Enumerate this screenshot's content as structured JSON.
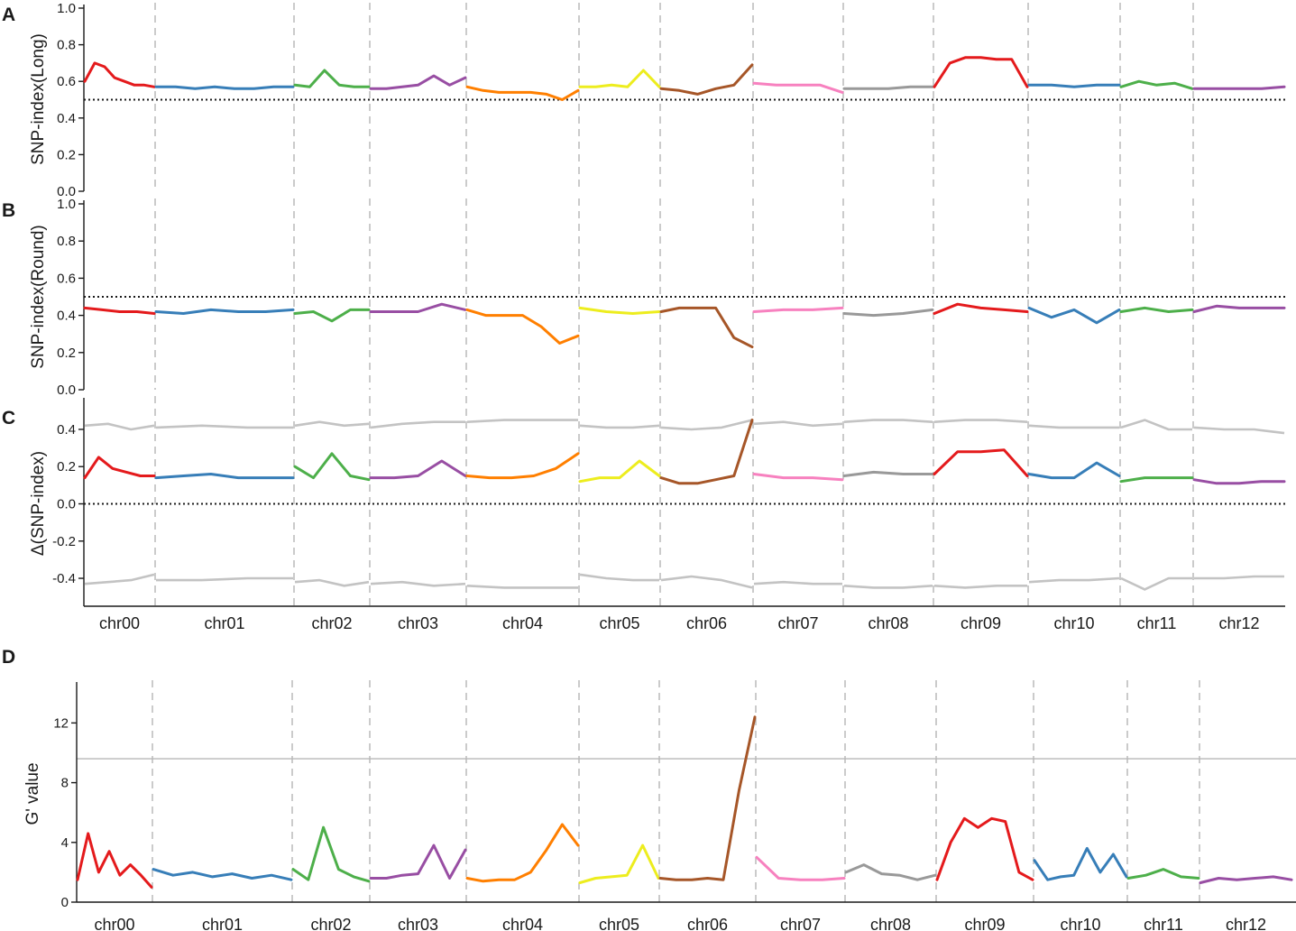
{
  "chart_data": [
    {
      "panel": "A",
      "type": "line",
      "ylabel": "SNP-index(Long)",
      "ylim": [
        0,
        1
      ],
      "yticks": [
        "0.0",
        "0.2",
        "0.4",
        "0.6",
        "0.8",
        "1.0"
      ],
      "threshold": 0.5,
      "chromosomes": [
        "chr00",
        "chr01",
        "chr02",
        "chr03",
        "chr04",
        "chr05",
        "chr06",
        "chr07",
        "chr08",
        "chr09",
        "chr10",
        "chr11",
        "chr12"
      ],
      "colors": [
        "#e41a1c",
        "#377eb8",
        "#4daf4a",
        "#984ea3",
        "#ff7f00",
        "#eded1e",
        "#a65628",
        "#f781bf",
        "#999999",
        "#e41a1c",
        "#377eb8",
        "#4daf4a",
        "#984ea3"
      ],
      "series": [
        {
          "chrom": "chr00",
          "values": [
            0.6,
            0.7,
            0.68,
            0.62,
            0.6,
            0.58,
            0.58,
            0.57
          ]
        },
        {
          "chrom": "chr01",
          "values": [
            0.57,
            0.57,
            0.56,
            0.57,
            0.56,
            0.56,
            0.57,
            0.57
          ]
        },
        {
          "chrom": "chr02",
          "values": [
            0.58,
            0.57,
            0.66,
            0.58,
            0.57,
            0.57
          ]
        },
        {
          "chrom": "chr03",
          "values": [
            0.56,
            0.56,
            0.57,
            0.58,
            0.63,
            0.58,
            0.62
          ]
        },
        {
          "chrom": "chr04",
          "values": [
            0.57,
            0.55,
            0.54,
            0.54,
            0.54,
            0.53,
            0.5,
            0.55
          ]
        },
        {
          "chrom": "chr05",
          "values": [
            0.57,
            0.57,
            0.58,
            0.57,
            0.66,
            0.57
          ]
        },
        {
          "chrom": "chr06",
          "values": [
            0.56,
            0.55,
            0.53,
            0.56,
            0.58,
            0.69
          ]
        },
        {
          "chrom": "chr07",
          "values": [
            0.59,
            0.58,
            0.58,
            0.58,
            0.54
          ]
        },
        {
          "chrom": "chr08",
          "values": [
            0.56,
            0.56,
            0.56,
            0.57,
            0.57
          ]
        },
        {
          "chrom": "chr09",
          "values": [
            0.57,
            0.7,
            0.73,
            0.73,
            0.72,
            0.72,
            0.57
          ]
        },
        {
          "chrom": "chr10",
          "values": [
            0.58,
            0.58,
            0.57,
            0.58,
            0.58
          ]
        },
        {
          "chrom": "chr11",
          "values": [
            0.57,
            0.6,
            0.58,
            0.59,
            0.56
          ]
        },
        {
          "chrom": "chr12",
          "values": [
            0.56,
            0.56,
            0.56,
            0.56,
            0.57
          ]
        }
      ]
    },
    {
      "panel": "B",
      "type": "line",
      "ylabel": "SNP-index(Round)",
      "ylim": [
        0,
        1
      ],
      "yticks": [
        "0.0",
        "0.2",
        "0.4",
        "0.6",
        "0.8",
        "1.0"
      ],
      "threshold": 0.5,
      "chromosomes": [
        "chr00",
        "chr01",
        "chr02",
        "chr03",
        "chr04",
        "chr05",
        "chr06",
        "chr07",
        "chr08",
        "chr09",
        "chr10",
        "chr11",
        "chr12"
      ],
      "colors": [
        "#e41a1c",
        "#377eb8",
        "#4daf4a",
        "#984ea3",
        "#ff7f00",
        "#eded1e",
        "#a65628",
        "#f781bf",
        "#999999",
        "#e41a1c",
        "#377eb8",
        "#4daf4a",
        "#984ea3"
      ],
      "series": [
        {
          "chrom": "chr00",
          "values": [
            0.44,
            0.43,
            0.42,
            0.42,
            0.41
          ]
        },
        {
          "chrom": "chr01",
          "values": [
            0.42,
            0.41,
            0.43,
            0.42,
            0.42,
            0.43
          ]
        },
        {
          "chrom": "chr02",
          "values": [
            0.41,
            0.42,
            0.37,
            0.43,
            0.43
          ]
        },
        {
          "chrom": "chr03",
          "values": [
            0.42,
            0.42,
            0.42,
            0.46,
            0.43
          ]
        },
        {
          "chrom": "chr04",
          "values": [
            0.43,
            0.4,
            0.4,
            0.4,
            0.34,
            0.25,
            0.29
          ]
        },
        {
          "chrom": "chr05",
          "values": [
            0.44,
            0.42,
            0.41,
            0.42
          ]
        },
        {
          "chrom": "chr06",
          "values": [
            0.42,
            0.44,
            0.44,
            0.44,
            0.28,
            0.23
          ]
        },
        {
          "chrom": "chr07",
          "values": [
            0.42,
            0.43,
            0.43,
            0.44
          ]
        },
        {
          "chrom": "chr08",
          "values": [
            0.41,
            0.4,
            0.41,
            0.43
          ]
        },
        {
          "chrom": "chr09",
          "values": [
            0.41,
            0.46,
            0.44,
            0.43,
            0.42
          ]
        },
        {
          "chrom": "chr10",
          "values": [
            0.44,
            0.39,
            0.43,
            0.36,
            0.43
          ]
        },
        {
          "chrom": "chr11",
          "values": [
            0.42,
            0.44,
            0.42,
            0.43
          ]
        },
        {
          "chrom": "chr12",
          "values": [
            0.42,
            0.45,
            0.44,
            0.44,
            0.44
          ]
        }
      ]
    },
    {
      "panel": "C",
      "type": "line",
      "ylabel": "Δ(SNP-index)",
      "ylim": [
        -0.55,
        0.55
      ],
      "yticks": [
        "-0.4",
        "-0.2",
        "0.0",
        "0.2",
        "0.4"
      ],
      "threshold": 0.0,
      "chromosomes": [
        "chr00",
        "chr01",
        "chr02",
        "chr03",
        "chr04",
        "chr05",
        "chr06",
        "chr07",
        "chr08",
        "chr09",
        "chr10",
        "chr11",
        "chr12"
      ],
      "colors": [
        "#e41a1c",
        "#377eb8",
        "#4daf4a",
        "#984ea3",
        "#ff7f00",
        "#eded1e",
        "#a65628",
        "#f781bf",
        "#999999",
        "#e41a1c",
        "#377eb8",
        "#4daf4a",
        "#984ea3"
      ],
      "series": [
        {
          "chrom": "chr00",
          "values": [
            0.14,
            0.25,
            0.19,
            0.17,
            0.15,
            0.15
          ]
        },
        {
          "chrom": "chr01",
          "values": [
            0.14,
            0.15,
            0.16,
            0.14,
            0.14,
            0.14
          ]
        },
        {
          "chrom": "chr02",
          "values": [
            0.2,
            0.14,
            0.27,
            0.15,
            0.13
          ]
        },
        {
          "chrom": "chr03",
          "values": [
            0.14,
            0.14,
            0.15,
            0.23,
            0.15
          ]
        },
        {
          "chrom": "chr04",
          "values": [
            0.15,
            0.14,
            0.14,
            0.15,
            0.19,
            0.27
          ]
        },
        {
          "chrom": "chr05",
          "values": [
            0.12,
            0.14,
            0.14,
            0.23,
            0.15
          ]
        },
        {
          "chrom": "chr06",
          "values": [
            0.14,
            0.11,
            0.11,
            0.13,
            0.15,
            0.45
          ]
        },
        {
          "chrom": "chr07",
          "values": [
            0.16,
            0.14,
            0.14,
            0.13
          ]
        },
        {
          "chrom": "chr08",
          "values": [
            0.15,
            0.17,
            0.16,
            0.16
          ]
        },
        {
          "chrom": "chr09",
          "values": [
            0.16,
            0.28,
            0.28,
            0.29,
            0.15
          ]
        },
        {
          "chrom": "chr10",
          "values": [
            0.16,
            0.14,
            0.14,
            0.22,
            0.15
          ]
        },
        {
          "chrom": "chr11",
          "values": [
            0.12,
            0.14,
            0.14,
            0.14
          ]
        },
        {
          "chrom": "chr12",
          "values": [
            0.13,
            0.11,
            0.11,
            0.12,
            0.12
          ]
        }
      ],
      "confidence_upper": [
        {
          "chrom": "chr00",
          "values": [
            0.42,
            0.43,
            0.4,
            0.42
          ]
        },
        {
          "chrom": "chr01",
          "values": [
            0.41,
            0.42,
            0.41,
            0.41
          ]
        },
        {
          "chrom": "chr02",
          "values": [
            0.42,
            0.44,
            0.42,
            0.43
          ]
        },
        {
          "chrom": "chr03",
          "values": [
            0.41,
            0.43,
            0.44,
            0.44
          ]
        },
        {
          "chrom": "chr04",
          "values": [
            0.44,
            0.45,
            0.45,
            0.45
          ]
        },
        {
          "chrom": "chr05",
          "values": [
            0.42,
            0.41,
            0.41,
            0.42
          ]
        },
        {
          "chrom": "chr06",
          "values": [
            0.41,
            0.4,
            0.41,
            0.45
          ]
        },
        {
          "chrom": "chr07",
          "values": [
            0.43,
            0.44,
            0.42,
            0.43
          ]
        },
        {
          "chrom": "chr08",
          "values": [
            0.44,
            0.45,
            0.45,
            0.44
          ]
        },
        {
          "chrom": "chr09",
          "values": [
            0.44,
            0.45,
            0.45,
            0.44
          ]
        },
        {
          "chrom": "chr10",
          "values": [
            0.42,
            0.41,
            0.41,
            0.41
          ]
        },
        {
          "chrom": "chr11",
          "values": [
            0.41,
            0.45,
            0.4,
            0.4
          ]
        },
        {
          "chrom": "chr12",
          "values": [
            0.41,
            0.4,
            0.4,
            0.38
          ]
        }
      ],
      "confidence_lower": [
        {
          "chrom": "chr00",
          "values": [
            -0.43,
            -0.42,
            -0.41,
            -0.38
          ]
        },
        {
          "chrom": "chr01",
          "values": [
            -0.41,
            -0.41,
            -0.4,
            -0.4
          ]
        },
        {
          "chrom": "chr02",
          "values": [
            -0.42,
            -0.41,
            -0.44,
            -0.42
          ]
        },
        {
          "chrom": "chr03",
          "values": [
            -0.43,
            -0.42,
            -0.44,
            -0.43
          ]
        },
        {
          "chrom": "chr04",
          "values": [
            -0.44,
            -0.45,
            -0.45,
            -0.45
          ]
        },
        {
          "chrom": "chr05",
          "values": [
            -0.38,
            -0.4,
            -0.41,
            -0.41
          ]
        },
        {
          "chrom": "chr06",
          "values": [
            -0.41,
            -0.39,
            -0.41,
            -0.45
          ]
        },
        {
          "chrom": "chr07",
          "values": [
            -0.43,
            -0.42,
            -0.43,
            -0.43
          ]
        },
        {
          "chrom": "chr08",
          "values": [
            -0.44,
            -0.45,
            -0.45,
            -0.44
          ]
        },
        {
          "chrom": "chr09",
          "values": [
            -0.44,
            -0.45,
            -0.44,
            -0.44
          ]
        },
        {
          "chrom": "chr10",
          "values": [
            -0.42,
            -0.41,
            -0.41,
            -0.4
          ]
        },
        {
          "chrom": "chr11",
          "values": [
            -0.4,
            -0.46,
            -0.4,
            -0.4
          ]
        },
        {
          "chrom": "chr12",
          "values": [
            -0.4,
            -0.4,
            -0.39,
            -0.39
          ]
        }
      ]
    },
    {
      "panel": "D",
      "type": "line",
      "ylabel": "G' value",
      "ylim": [
        0,
        14.5
      ],
      "yticks": [
        "0",
        "4",
        "8",
        "12"
      ],
      "threshold": 9.6,
      "chromosomes": [
        "chr00",
        "chr01",
        "chr02",
        "chr03",
        "chr04",
        "chr05",
        "chr06",
        "chr07",
        "chr08",
        "chr09",
        "chr10",
        "chr11",
        "chr12"
      ],
      "colors": [
        "#e41a1c",
        "#377eb8",
        "#4daf4a",
        "#984ea3",
        "#ff7f00",
        "#eded1e",
        "#a65628",
        "#f781bf",
        "#999999",
        "#e41a1c",
        "#377eb8",
        "#4daf4a",
        "#984ea3"
      ],
      "series": [
        {
          "chrom": "chr00",
          "values": [
            1.5,
            4.6,
            2.0,
            3.4,
            1.8,
            2.5,
            1.8,
            1.0
          ]
        },
        {
          "chrom": "chr01",
          "values": [
            2.2,
            1.8,
            2.0,
            1.7,
            1.9,
            1.6,
            1.8,
            1.5
          ]
        },
        {
          "chrom": "chr02",
          "values": [
            2.2,
            1.5,
            5.0,
            2.2,
            1.7,
            1.4
          ]
        },
        {
          "chrom": "chr03",
          "values": [
            1.6,
            1.6,
            1.8,
            1.9,
            3.8,
            1.6,
            3.5
          ]
        },
        {
          "chrom": "chr04",
          "values": [
            1.6,
            1.4,
            1.5,
            1.5,
            2.0,
            3.5,
            5.2,
            3.8
          ]
        },
        {
          "chrom": "chr05",
          "values": [
            1.3,
            1.6,
            1.7,
            1.8,
            3.8,
            1.6
          ]
        },
        {
          "chrom": "chr06",
          "values": [
            1.6,
            1.5,
            1.5,
            1.6,
            1.5,
            7.5,
            12.4
          ]
        },
        {
          "chrom": "chr07",
          "values": [
            3.0,
            1.6,
            1.5,
            1.5,
            1.6
          ]
        },
        {
          "chrom": "chr08",
          "values": [
            2.0,
            2.5,
            1.9,
            1.8,
            1.5,
            1.8
          ]
        },
        {
          "chrom": "chr09",
          "values": [
            1.5,
            4.0,
            5.6,
            5.0,
            5.6,
            5.4,
            2.0,
            1.5
          ]
        },
        {
          "chrom": "chr10",
          "values": [
            2.8,
            1.5,
            1.7,
            1.8,
            3.6,
            2.0,
            3.2,
            1.7
          ]
        },
        {
          "chrom": "chr11",
          "values": [
            1.6,
            1.8,
            2.2,
            1.7,
            1.6
          ]
        },
        {
          "chrom": "chr12",
          "values": [
            1.3,
            1.6,
            1.5,
            1.6,
            1.7,
            1.5
          ]
        }
      ]
    }
  ]
}
